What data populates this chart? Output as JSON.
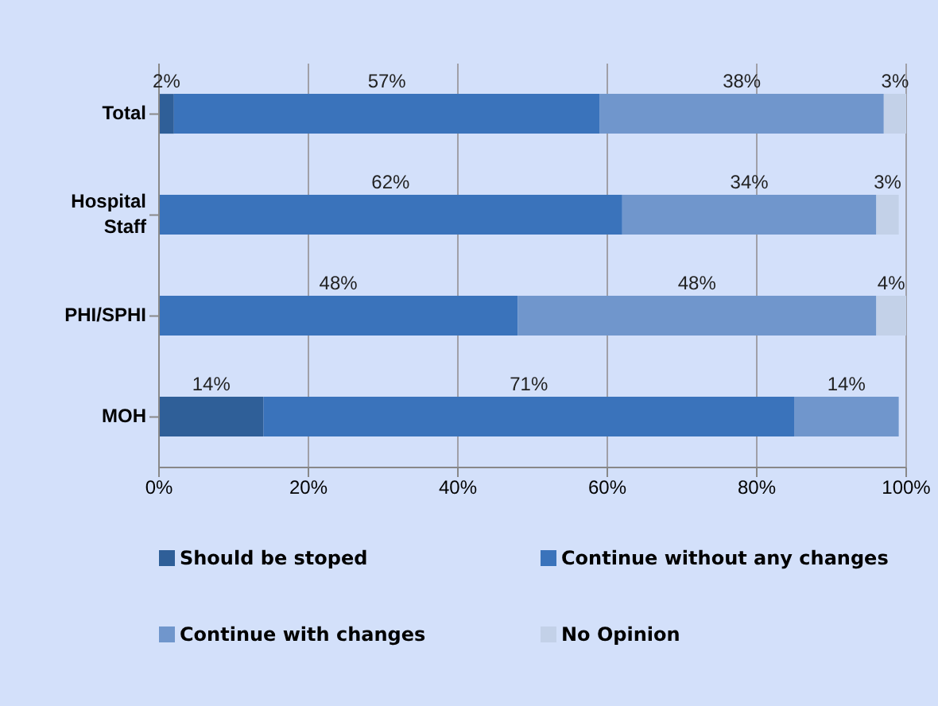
{
  "chart_data": {
    "type": "bar",
    "orientation": "horizontal",
    "stacked": true,
    "categories": [
      "Total",
      "Hospital Staff",
      "PHI/SPHI",
      "MOH"
    ],
    "series": [
      {
        "name": "Should be stoped",
        "color": "#2f5f98",
        "values": [
          2,
          0,
          0,
          14
        ],
        "value_labels": [
          "2%",
          null,
          null,
          "14%"
        ]
      },
      {
        "name": "Continue without any changes",
        "color": "#3a73bb",
        "values": [
          57,
          62,
          48,
          71
        ],
        "value_labels": [
          "57%",
          "62%",
          "48%",
          "71%"
        ]
      },
      {
        "name": "Continue with changes",
        "color": "#7096cc",
        "values": [
          38,
          34,
          48,
          14
        ],
        "value_labels": [
          "38%",
          "34%",
          "48%",
          "14%"
        ]
      },
      {
        "name": "No Opinion",
        "color": "#c3d1e8",
        "values": [
          3,
          3,
          4,
          0
        ],
        "value_labels": [
          "3%",
          "3%",
          "4%",
          null
        ]
      }
    ],
    "xlim": [
      0,
      100
    ],
    "xticks": [
      {
        "value": 0,
        "label": "0%"
      },
      {
        "value": 20,
        "label": "20%"
      },
      {
        "value": 40,
        "label": "40%"
      },
      {
        "value": 60,
        "label": "60%"
      },
      {
        "value": 80,
        "label": "80%"
      },
      {
        "value": 100,
        "label": "100%"
      }
    ],
    "grid": "x",
    "legend": "bottom"
  }
}
